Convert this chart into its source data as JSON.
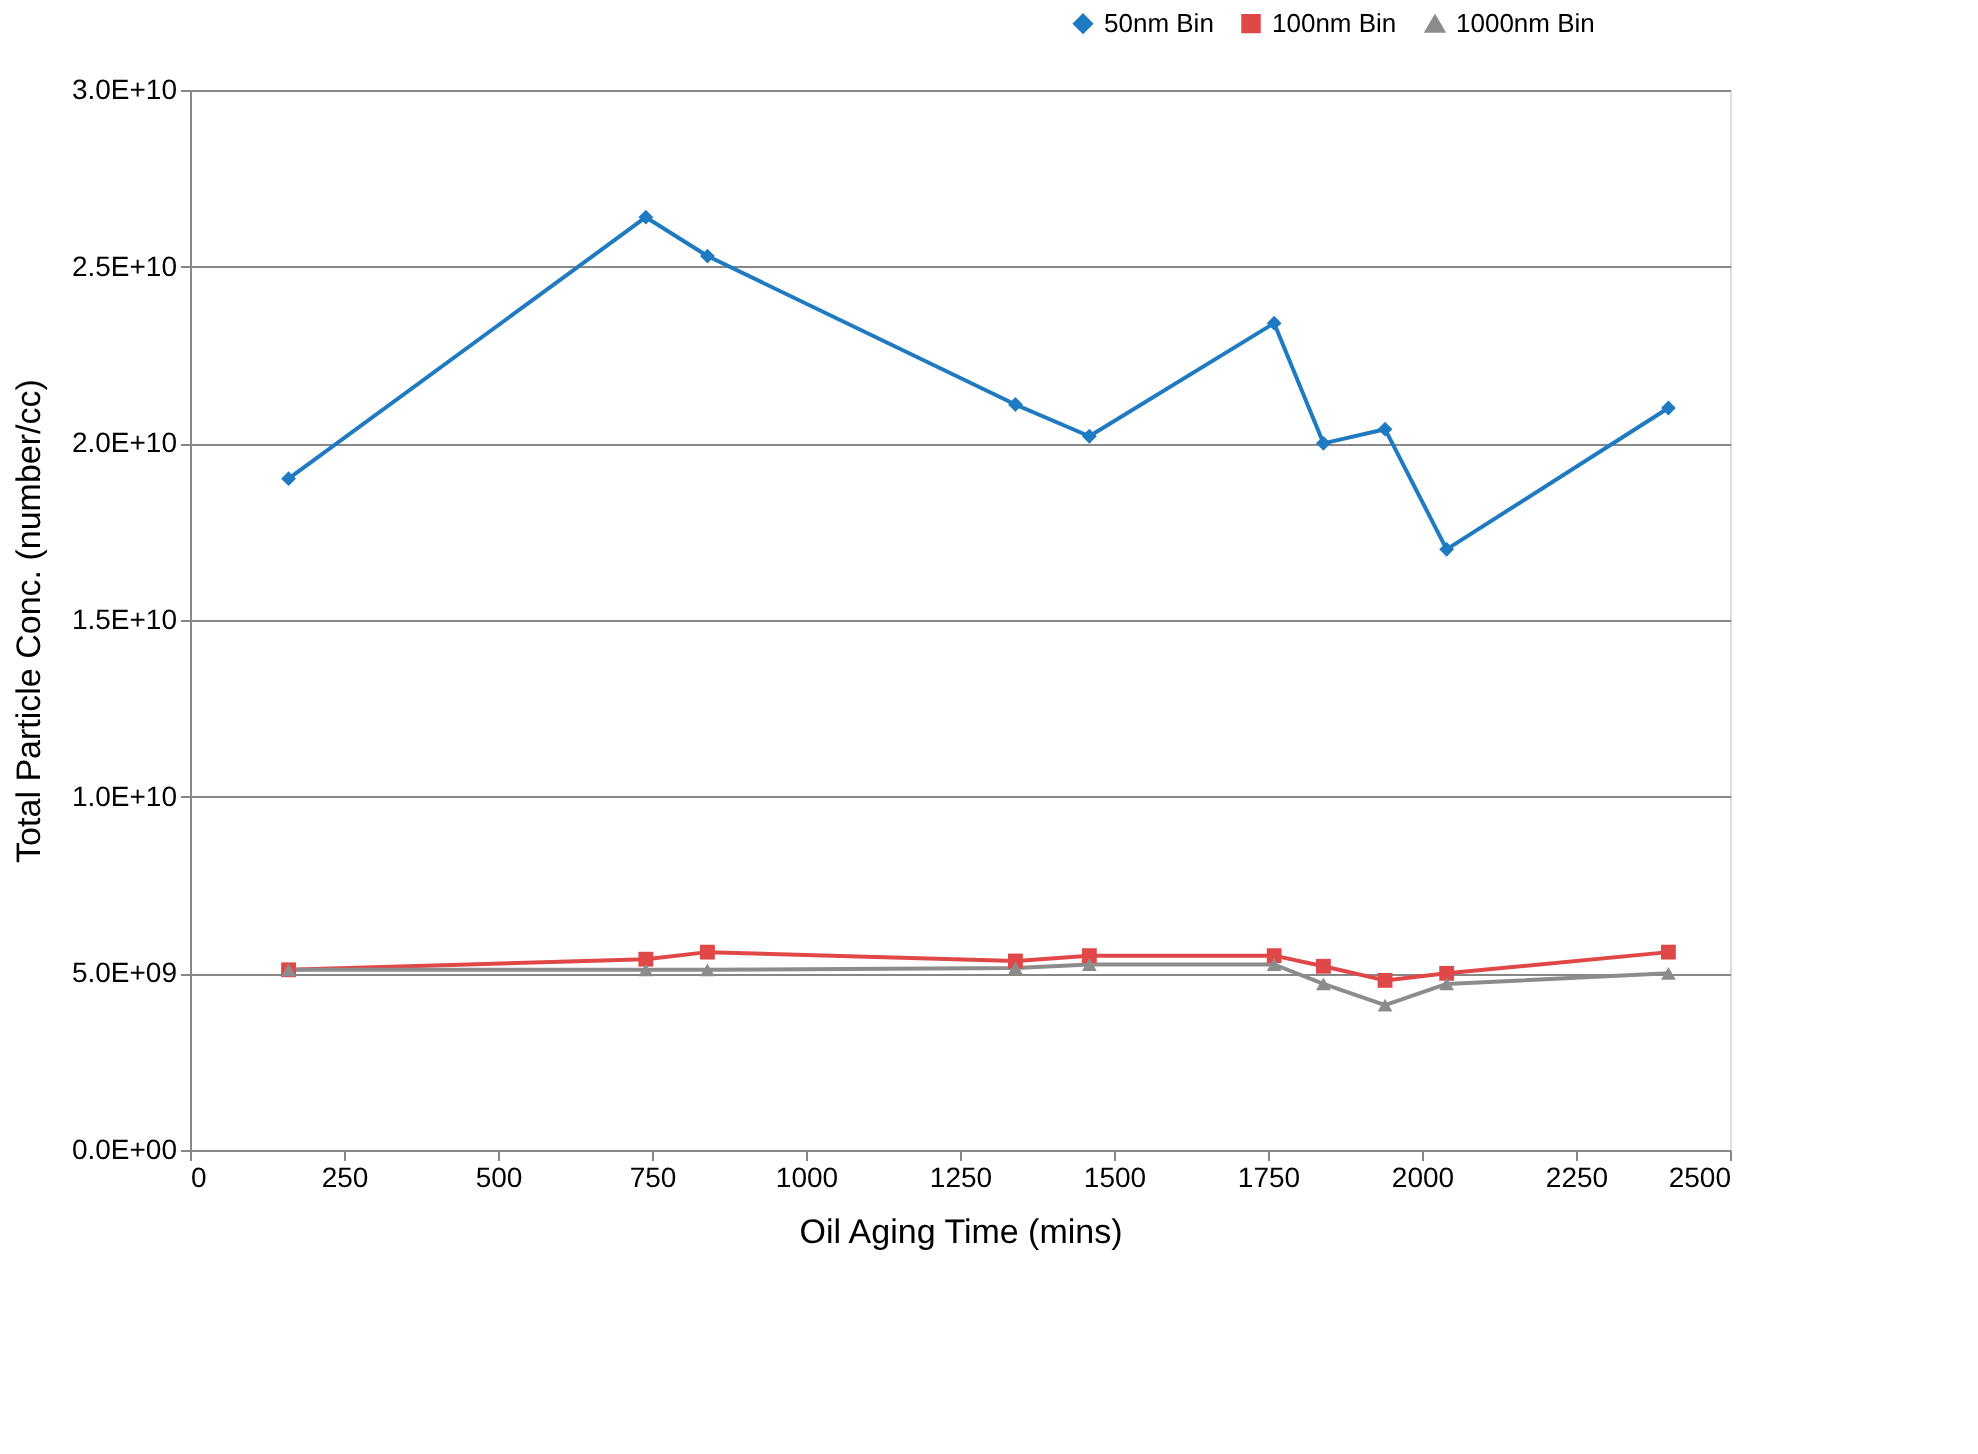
{
  "chart_data": {
    "type": "line",
    "xlabel": "Oil Aging Time (mins)",
    "ylabel": "Total Particle Conc. (number/cc)",
    "x": [
      160,
      740,
      840,
      1340,
      1460,
      1760,
      1840,
      1940,
      2040,
      2400
    ],
    "series": [
      {
        "name": "50nm Bin",
        "color": "#1f7bc1",
        "marker": "diamond",
        "values": [
          19000000000.0,
          26400000000.0,
          25300000000.0,
          21100000000.0,
          20200000000.0,
          23400000000.0,
          20000000000.0,
          20400000000.0,
          17000000000.0,
          21000000000.0
        ]
      },
      {
        "name": "100nm Bin",
        "color": "#e04848",
        "marker": "square",
        "values": [
          5100000000.0,
          5400000000.0,
          5600000000.0,
          5350000000.0,
          5500000000.0,
          5500000000.0,
          5200000000.0,
          4800000000.0,
          5000000000.0,
          5600000000.0
        ]
      },
      {
        "name": "1000nm Bin",
        "color": "#8c8c8c",
        "marker": "triangle",
        "values": [
          5100000000.0,
          5100000000.0,
          5100000000.0,
          5150000000.0,
          5250000000.0,
          5250000000.0,
          4700000000.0,
          4100000000.0,
          4700000000.0,
          5000000000.0
        ]
      }
    ],
    "xlim": [
      0,
      2500
    ],
    "xticks": [
      0,
      250,
      500,
      750,
      1000,
      1250,
      1500,
      1750,
      2000,
      2250,
      2500
    ],
    "ylim": [
      0,
      30000000000.0
    ],
    "yticks": [
      {
        "value": 0,
        "label": "0.0E+00"
      },
      {
        "value": 5000000000.0,
        "label": "5.0E+09"
      },
      {
        "value": 10000000000.0,
        "label": "1.0E+10"
      },
      {
        "value": 15000000000.0,
        "label": "1.5E+10"
      },
      {
        "value": 20000000000.0,
        "label": "2.0E+10"
      },
      {
        "value": 25000000000.0,
        "label": "2.5E+10"
      },
      {
        "value": 30000000000.0,
        "label": "3.0E+10"
      }
    ],
    "grid": "y",
    "legend": "top right",
    "line_style": "solid"
  }
}
